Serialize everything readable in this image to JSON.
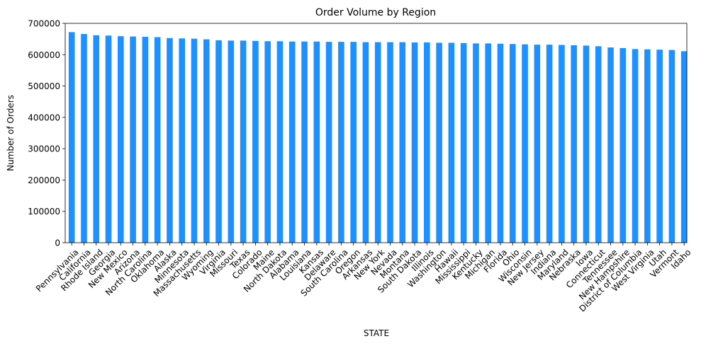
{
  "chart_data": {
    "type": "bar",
    "title": "Order Volume by Region",
    "xlabel": "STATE",
    "ylabel": "Number of Orders",
    "ylim": [
      0,
      700000
    ],
    "yticks": [
      0,
      100000,
      200000,
      300000,
      400000,
      500000,
      600000,
      700000
    ],
    "ytick_labels": [
      "0",
      "100000",
      "200000",
      "300000",
      "400000",
      "500000",
      "600000",
      "700000"
    ],
    "bar_color": "#1E90FF",
    "grid": false,
    "categories": [
      "Pennsylvania",
      "California",
      "Rhode Island",
      "Georgia",
      "New Mexico",
      "Arizona",
      "North Carolina",
      "Oklahoma",
      "Alaska",
      "Minnesota",
      "Massachusetts",
      "Wyoming",
      "Virginia",
      "Missouri",
      "Texas",
      "Colorado",
      "Maine",
      "North Dakota",
      "Alabama",
      "Louisiana",
      "Kansas",
      "Delaware",
      "South Carolina",
      "Oregon",
      "Arkansas",
      "New York",
      "Nevada",
      "Montana",
      "South Dakota",
      "Illinois",
      "Washington",
      "Hawaii",
      "Mississippi",
      "Kentucky",
      "Michigan",
      "Florida",
      "Ohio",
      "Wisconsin",
      "New Jersey",
      "Indiana",
      "Maryland",
      "Nebraska",
      "Iowa",
      "Connecticut",
      "Tennessee",
      "New Hampshire",
      "District of Columbia",
      "West Virginia",
      "Utah",
      "Vermont",
      "Idaho"
    ],
    "values": [
      672000,
      666000,
      662000,
      661000,
      659000,
      658000,
      657000,
      656000,
      653000,
      652000,
      651000,
      649000,
      646000,
      645000,
      645000,
      644000,
      643000,
      643000,
      642000,
      642000,
      642000,
      641000,
      641000,
      641000,
      640000,
      640000,
      640000,
      640000,
      639000,
      639000,
      638000,
      638000,
      637000,
      636000,
      636000,
      635000,
      634000,
      633000,
      632000,
      632000,
      631000,
      630000,
      629000,
      627000,
      623000,
      621000,
      618000,
      617000,
      616000,
      615000,
      611000
    ]
  }
}
